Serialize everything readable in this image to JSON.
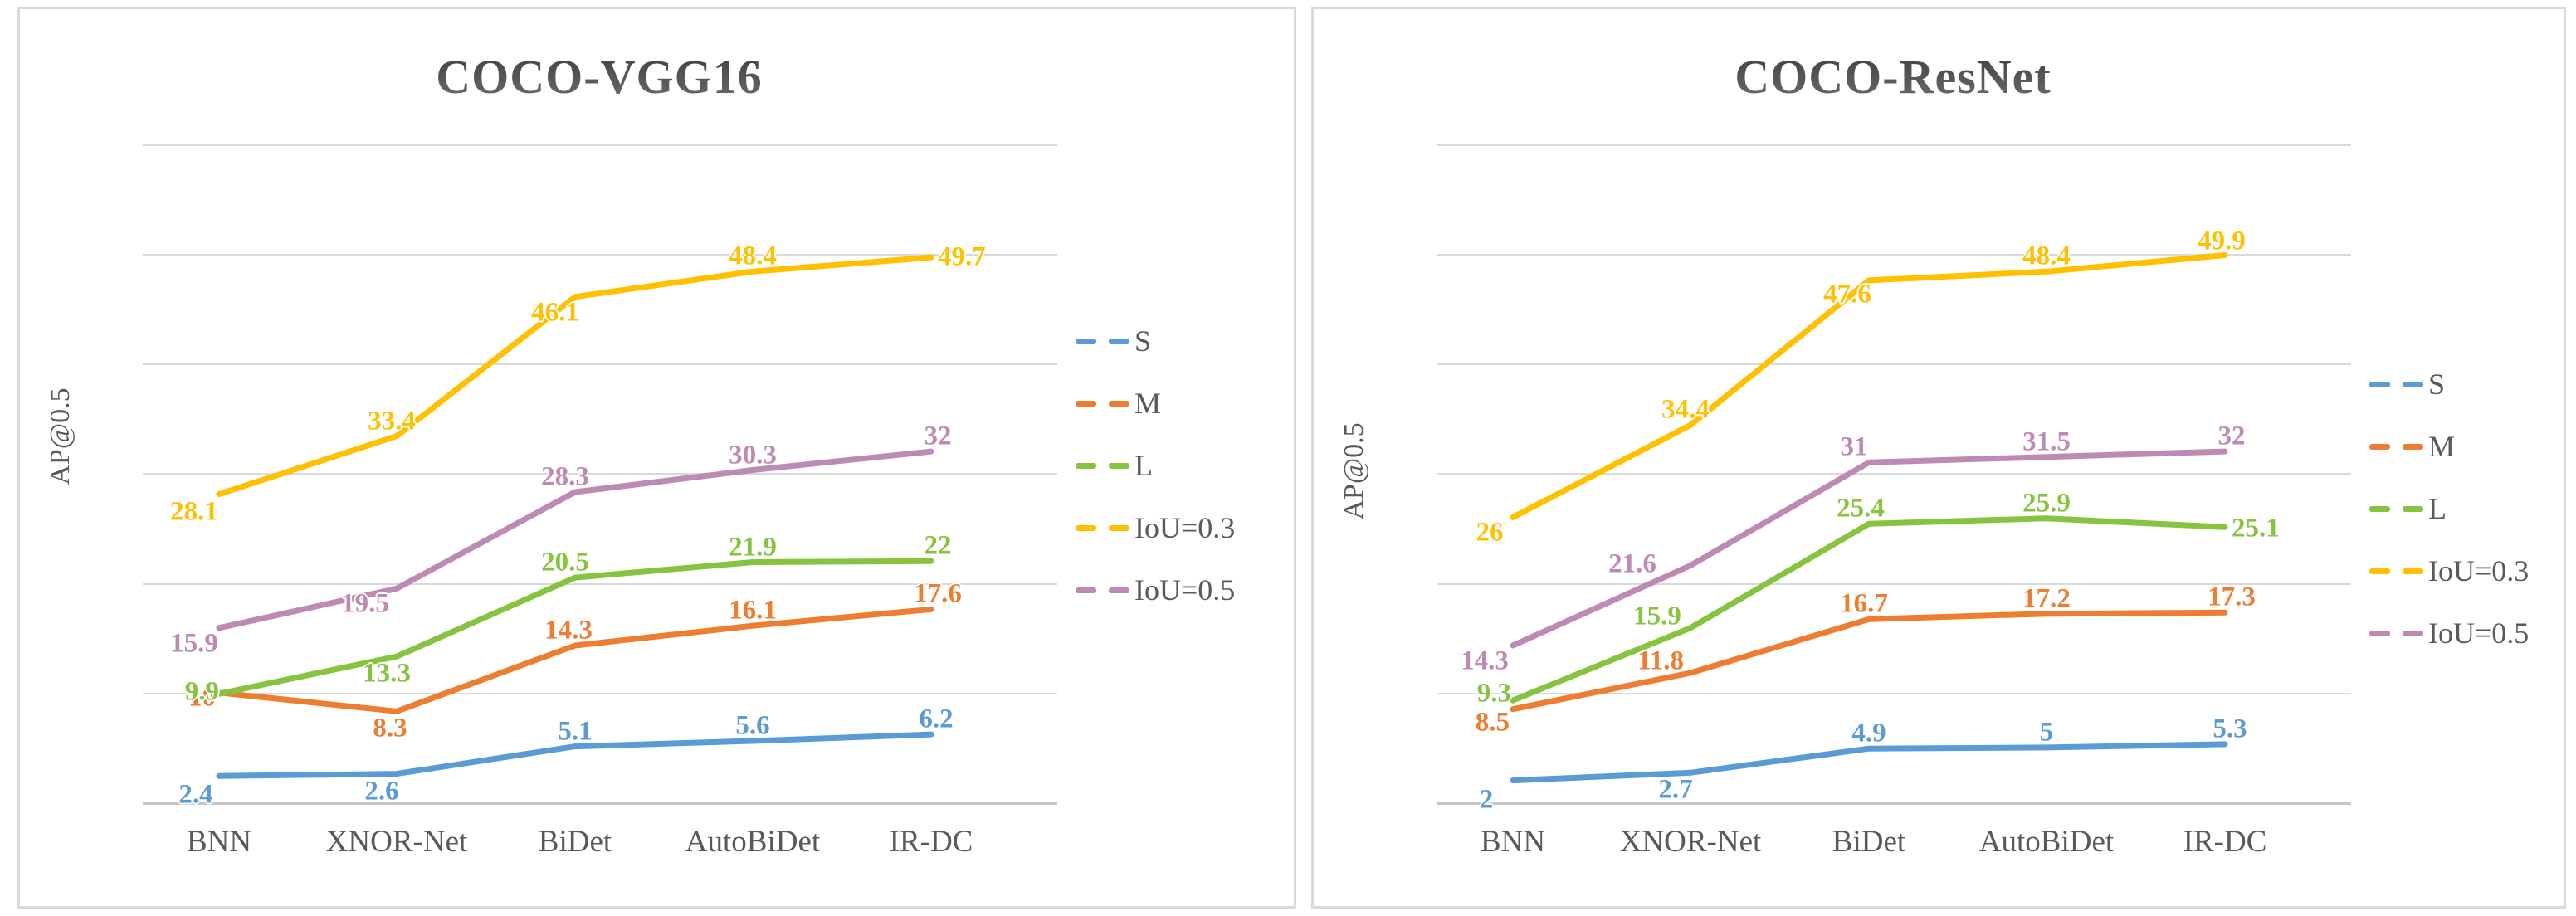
{
  "page": {
    "background": "#ffffff",
    "gridline_color": "#d9d9d9",
    "text_color": "#595959"
  },
  "chart_data": [
    {
      "type": "line",
      "title": "COCO-VGG16",
      "ylabel": "AP@0.5",
      "categories": [
        "BNN",
        "XNOR-Net",
        "BiDet",
        "AutoBiDet",
        "IR-DC"
      ],
      "ylim": [
        0,
        60
      ],
      "ytick_step": 10,
      "grid": true,
      "legend_position": "right",
      "series": [
        {
          "name": "S",
          "color": "#5B9BD5",
          "values": [
            2.4,
            2.6,
            5.1,
            5.6,
            6.2
          ],
          "labels": [
            "2.4",
            "2.6",
            "5.1",
            "5.6",
            "6.2"
          ]
        },
        {
          "name": "M",
          "color": "#ED7D31",
          "values": [
            10,
            8.3,
            14.3,
            16.1,
            17.6
          ],
          "labels": [
            "10",
            "8.3",
            "14.3",
            "16.1",
            "17.6"
          ]
        },
        {
          "name": "L",
          "color": "#86C33E",
          "values": [
            9.9,
            13.3,
            20.5,
            21.9,
            22
          ],
          "labels": [
            "9.9",
            "13.3",
            "20.5",
            "21.9",
            "22"
          ]
        },
        {
          "name": "IoU=0.3",
          "color": "#FFC000",
          "values": [
            28.1,
            33.4,
            46.1,
            48.4,
            49.7
          ],
          "labels": [
            "28.1",
            "33.4",
            "46.1",
            "48.4",
            "49.7"
          ]
        },
        {
          "name": "IoU=0.5",
          "color": "#BE8AB4",
          "values": [
            15.9,
            19.5,
            28.3,
            30.3,
            32
          ],
          "labels": [
            "15.9",
            "19.5",
            "28.3",
            "30.3",
            "32"
          ]
        }
      ]
    },
    {
      "type": "line",
      "title": "COCO-ResNet",
      "ylabel": "AP@0.5",
      "categories": [
        "BNN",
        "XNOR-Net",
        "BiDet",
        "AutoBiDet",
        "IR-DC"
      ],
      "ylim": [
        0,
        60
      ],
      "ytick_step": 10,
      "grid": true,
      "legend_position": "right",
      "series": [
        {
          "name": "S",
          "color": "#5B9BD5",
          "values": [
            2,
            2.7,
            4.9,
            5,
            5.3
          ],
          "labels": [
            "2",
            "2.7",
            "4.9",
            "5",
            "5.3"
          ]
        },
        {
          "name": "M",
          "color": "#ED7D31",
          "values": [
            8.5,
            11.8,
            16.7,
            17.2,
            17.3
          ],
          "labels": [
            "8.5",
            "11.8",
            "16.7",
            "17.2",
            "17.3"
          ]
        },
        {
          "name": "L",
          "color": "#86C33E",
          "values": [
            9.3,
            15.9,
            25.4,
            25.9,
            25.1
          ],
          "labels": [
            "9.3",
            "15.9",
            "25.4",
            "25.9",
            "25.1"
          ]
        },
        {
          "name": "IoU=0.3",
          "color": "#FFC000",
          "values": [
            26,
            34.4,
            47.6,
            48.4,
            49.9
          ],
          "labels": [
            "26",
            "34.4",
            "47.6",
            "48.4",
            "49.9"
          ]
        },
        {
          "name": "IoU=0.5",
          "color": "#BE8AB4",
          "values": [
            14.3,
            21.6,
            31,
            31.5,
            32
          ],
          "labels": [
            "14.3",
            "21.6",
            "31",
            "31.5",
            "32"
          ]
        }
      ]
    }
  ]
}
